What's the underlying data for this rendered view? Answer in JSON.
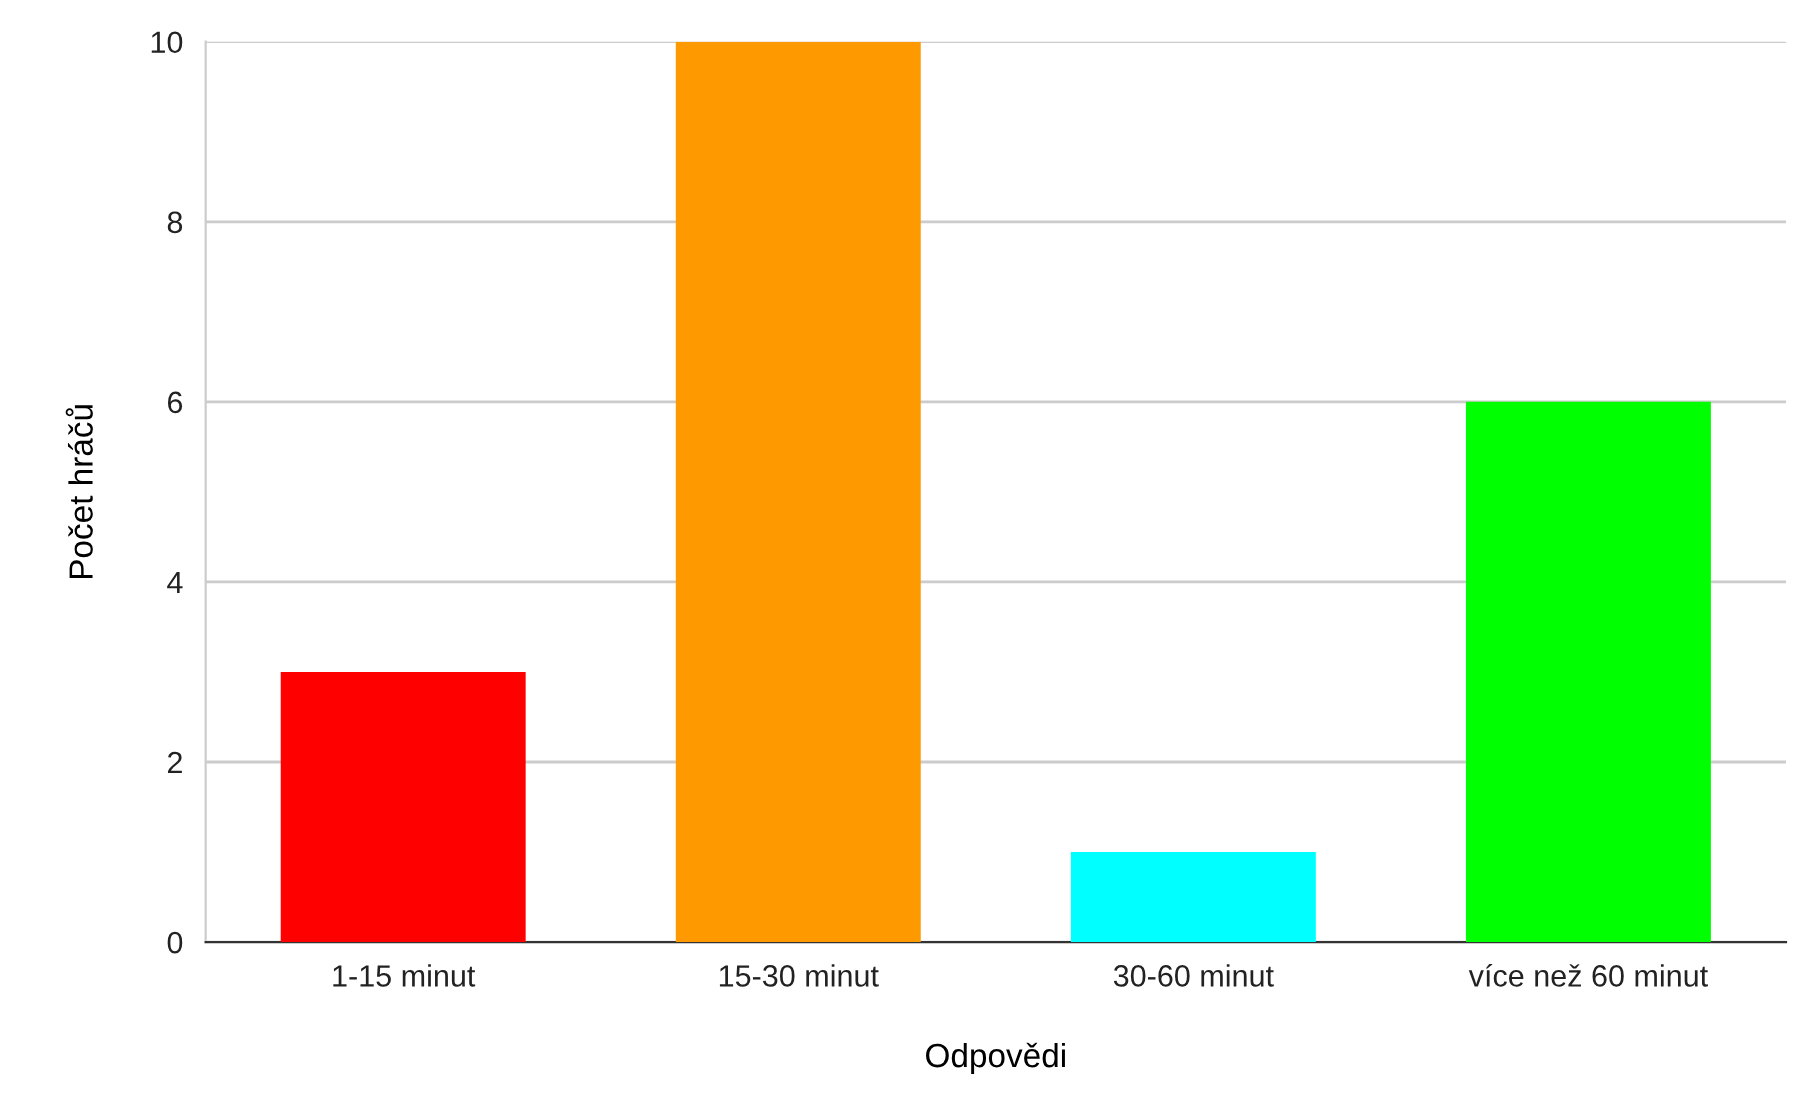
{
  "chart_data": {
    "type": "bar",
    "xlabel": "Odpovědi",
    "ylabel": "Počet hráčů",
    "categories": [
      "1-15 minut",
      "15-30 minut",
      "30-60 minut",
      "více než 60 minut"
    ],
    "values": [
      3,
      10,
      1,
      6
    ],
    "colors": [
      "#ff0000",
      "#ff9900",
      "#00ffff",
      "#00ff00"
    ],
    "ylim": [
      0,
      10
    ],
    "yticks": [
      0,
      2,
      4,
      6,
      8,
      10
    ],
    "grid": "y",
    "legend": false
  }
}
